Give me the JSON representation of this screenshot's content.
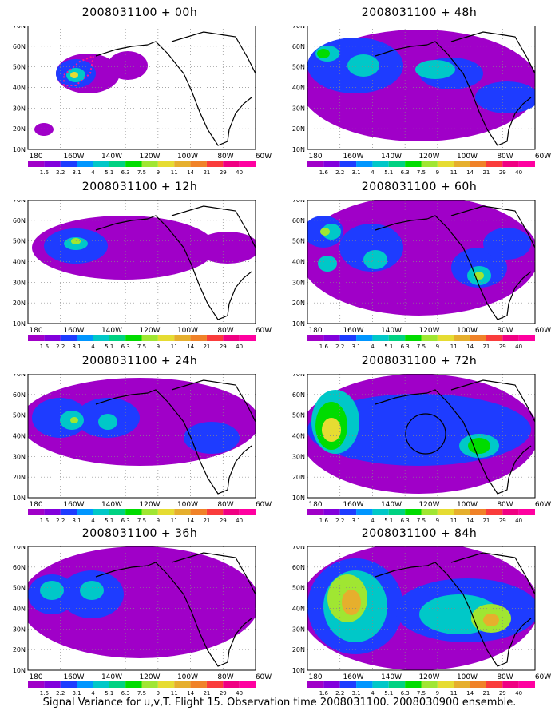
{
  "panels": [
    {
      "title": "2008031100 + 00h"
    },
    {
      "title": "2008031100 + 48h"
    },
    {
      "title": "2008031100 + 12h"
    },
    {
      "title": "2008031100 + 60h"
    },
    {
      "title": "2008031100 + 24h"
    },
    {
      "title": "2008031100 + 72h"
    },
    {
      "title": "2008031100 + 36h"
    },
    {
      "title": "2008031100 + 84h"
    }
  ],
  "lat_labels": [
    "70N",
    "60N",
    "50N",
    "40N",
    "30N",
    "20N",
    "10N"
  ],
  "lon_labels": [
    "180",
    "160W",
    "140W",
    "120W",
    "100W",
    "80W",
    "60W"
  ],
  "colorbar": {
    "labels": [
      "1.6",
      "2.2",
      "3.1",
      "4",
      "5.1",
      "6.3",
      "7.5",
      "9",
      "11",
      "14",
      "21",
      "29",
      "40"
    ],
    "colors": [
      "#a000c8",
      "#8200dc",
      "#1e3cff",
      "#0096ff",
      "#00c8c8",
      "#00d282",
      "#00dc00",
      "#a0e632",
      "#e6dc32",
      "#e6af2d",
      "#f08228",
      "#fa3c3c",
      "#f00082",
      "#ff00a0"
    ]
  },
  "footer": "Signal Variance for u,v,T. Flight 15. Observation time 2008031100. 2008030900 ensemble."
}
